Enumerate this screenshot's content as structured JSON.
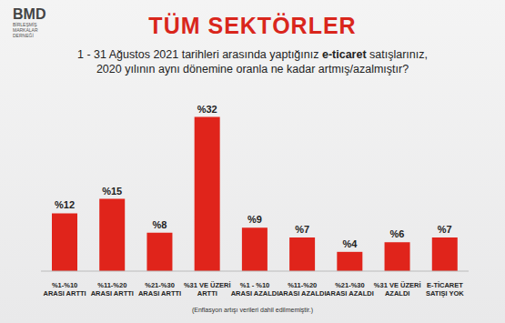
{
  "chart_data": {
    "type": "bar",
    "title": "TÜM SEKTÖRLER",
    "subtitle": [
      [
        "1 - 31 Ağustos 2021 tarihleri arasında yaptığınız ",
        "e-ticaret",
        " satışlarınız,"
      ],
      [
        "2020 yılının aynı dönemine oranla ne kadar artmış/azalmıştır?"
      ]
    ],
    "annotations": [
      "BMD",
      "BİRLEŞMİŞ",
      "MARKALAR",
      "DERNEĞİ",
      "(Enflasyon artışı verileri dahil edilmemiştir.)"
    ],
    "categories": [
      "%1-%10\nARASI ARTTI",
      "%11-%20\nARASI ARTTI",
      "%21-%30\nARASI ARTTI",
      "%31 VE ÜZERİ\nARTTI",
      "%1 - %10\nARASI AZALDI",
      "%11-%20\nARASI AZALDI",
      "%21-%30\nARASI AZALDI",
      "%31 VE ÜZERİ\nAZALDI",
      "E-TİCARET\nSATIŞI YOK"
    ],
    "values": [
      12,
      15,
      8,
      32,
      9,
      7,
      4,
      6,
      7
    ],
    "value_labels": [
      "%12",
      "%15",
      "%8",
      "%32",
      "%9",
      "%7",
      "%4",
      "%6",
      "%7"
    ],
    "color": "#e0241b",
    "ylim": [
      0,
      34
    ],
    "data_labels": true,
    "tick_labels": "x",
    "grid": false
  }
}
